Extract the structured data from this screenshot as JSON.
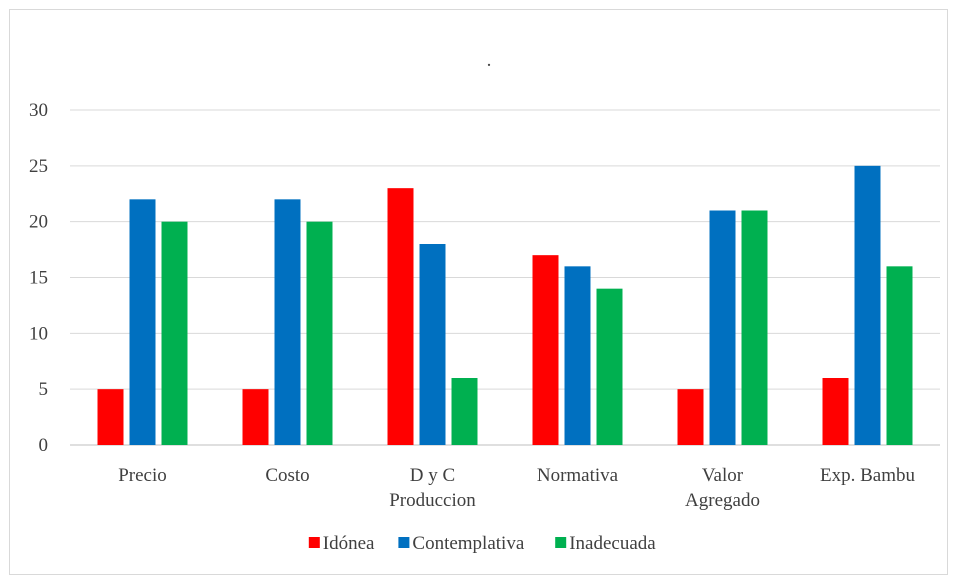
{
  "chart_data": {
    "type": "bar",
    "title": ".",
    "categories": [
      [
        "Precio"
      ],
      [
        "Costo"
      ],
      [
        "D y C",
        "Produccion"
      ],
      [
        "Normativa"
      ],
      [
        "Valor",
        "Agregado"
      ],
      [
        "Exp. Bambu"
      ]
    ],
    "series": [
      {
        "name": "Idónea",
        "color": "#ff0000",
        "values": [
          5,
          5,
          23,
          17,
          5,
          6
        ]
      },
      {
        "name": "Contemplativa",
        "color": "#0070c0",
        "values": [
          22,
          22,
          18,
          16,
          21,
          25
        ]
      },
      {
        "name": "Inadecuada",
        "color": "#00b050",
        "values": [
          20,
          20,
          6,
          14,
          21,
          16
        ]
      }
    ],
    "ylim": [
      0,
      30
    ],
    "yticks": [
      0,
      5,
      10,
      15,
      20,
      25,
      30
    ],
    "grid": true,
    "legend_position": "bottom",
    "xlabel": "",
    "ylabel": ""
  }
}
